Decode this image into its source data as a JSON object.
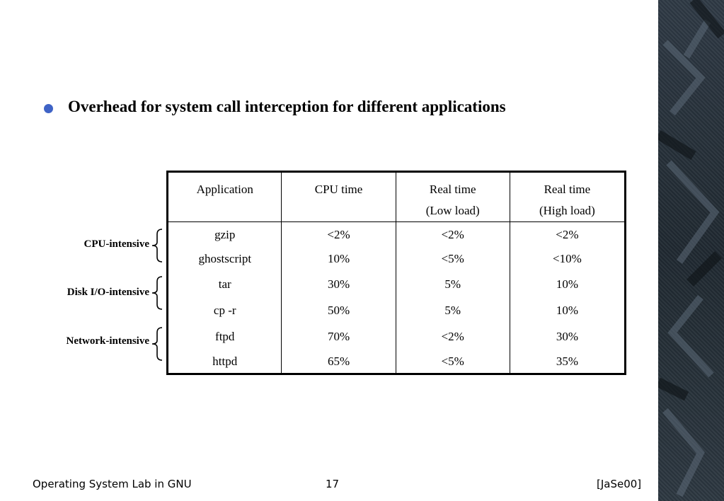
{
  "heading": "Overhead for system call interception for different applications",
  "table": {
    "headers": [
      {
        "line1": "Application",
        "line2": ""
      },
      {
        "line1": "CPU time",
        "line2": ""
      },
      {
        "line1": "Real time",
        "line2": "(Low load)"
      },
      {
        "line1": "Real time",
        "line2": "(High load)"
      }
    ],
    "rows": [
      [
        "gzip",
        "<2%",
        "<2%",
        "<2%"
      ],
      [
        "ghostscript",
        "10%",
        "<5%",
        "<10%"
      ],
      [
        "tar",
        "30%",
        "5%",
        "10%"
      ],
      [
        "cp -r",
        "50%",
        "5%",
        "10%"
      ],
      [
        "ftpd",
        "70%",
        "<2%",
        "30%"
      ],
      [
        "httpd",
        "65%",
        "<5%",
        "35%"
      ]
    ]
  },
  "groups": [
    "CPU-intensive",
    "Disk I/O-intensive",
    "Network-intensive"
  ],
  "footer": {
    "left": "Operating System Lab in GNU",
    "center": "17",
    "right": "[JaSe00]"
  },
  "colors": {
    "bullet": "#3f63c6"
  }
}
